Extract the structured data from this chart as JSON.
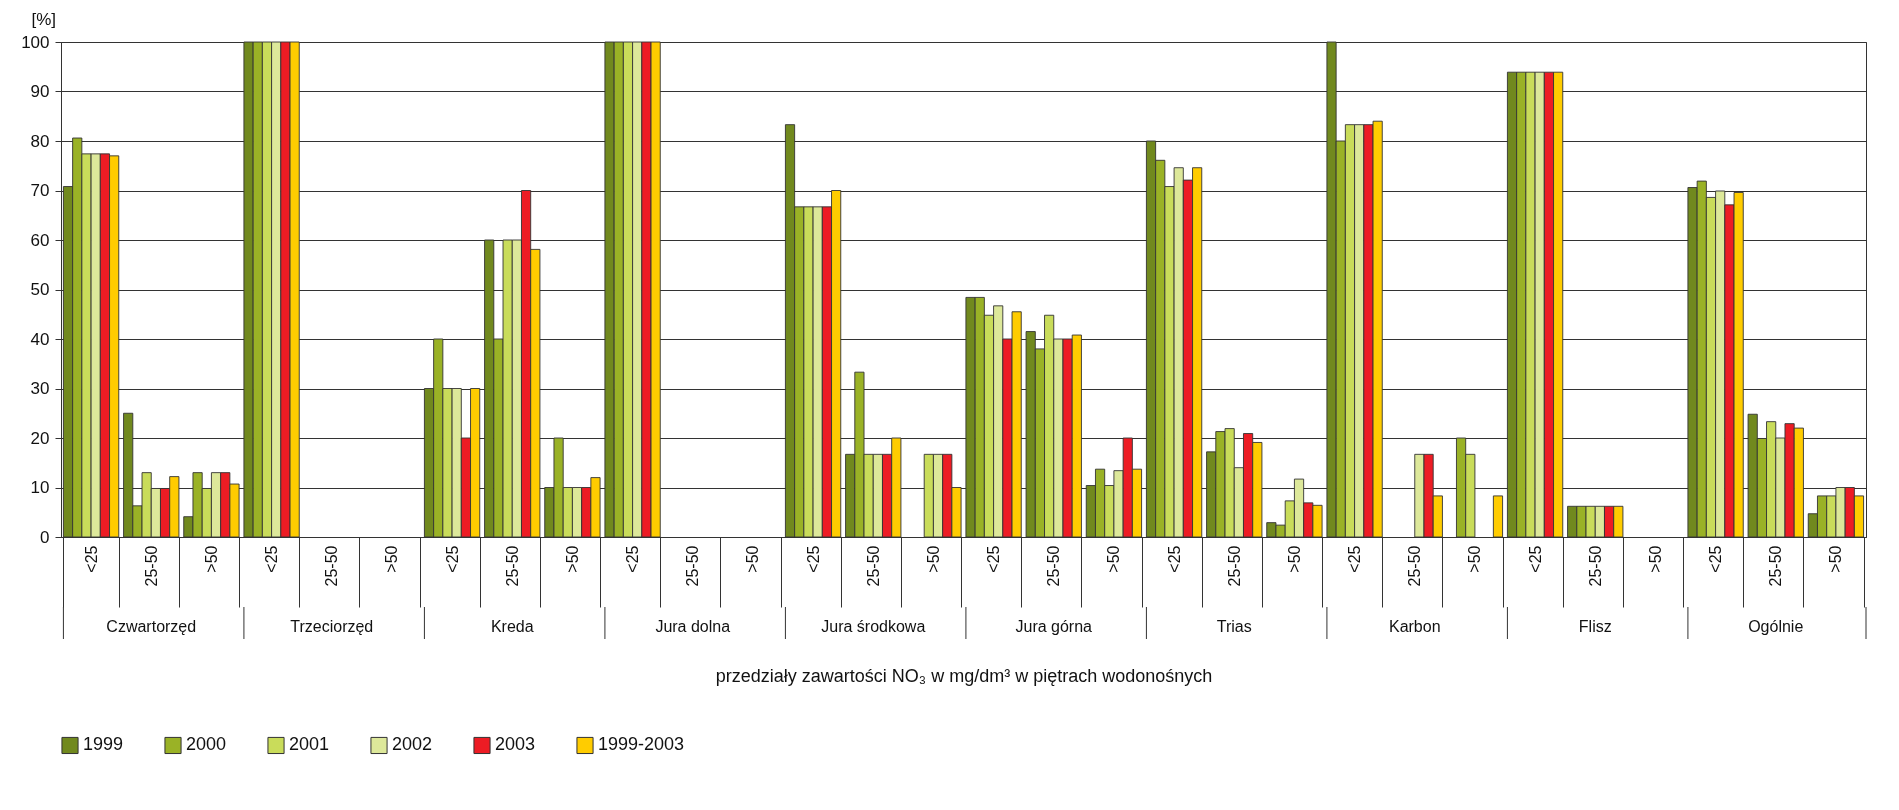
{
  "chart_data": {
    "type": "bar",
    "ylabel": "[%]",
    "xlabel": "przedziały zawartości NO₃ w mg/dm³ w piętrach wodonośnych",
    "categories": [
      "<25",
      "25-50",
      ">50",
      "<25",
      "25-50",
      ">50",
      "<25",
      "25-50",
      ">50",
      "<25",
      "25-50",
      ">50",
      "<25",
      "25-50",
      ">50",
      "<25",
      "25-50",
      ">50",
      "<25",
      "25-50",
      ">50",
      "<25",
      "25-50",
      ">50",
      "<25",
      "25-50",
      ">50",
      "<25",
      "25-50",
      ">50"
    ],
    "annotations": [
      "Czwartorzęd",
      "Trzeciorzęd",
      "Kreda",
      "Jura dolna",
      "Jura środkowa",
      "Jura górna",
      "Trias",
      "Karbon",
      "Flisz",
      "Ogólnie"
    ],
    "series": [
      {
        "name": "1999",
        "color": "#71891e",
        "values": [
          70.8,
          25,
          4.1,
          100,
          null,
          null,
          30,
          60,
          10,
          100,
          null,
          null,
          83.3,
          16.7,
          null,
          48.4,
          41.5,
          10.4,
          80,
          17.2,
          2.9,
          100,
          null,
          null,
          93.9,
          6.2,
          null,
          70.6,
          24.8,
          4.7
        ]
      },
      {
        "name": "2000",
        "color": "#9ab226",
        "values": [
          80.6,
          6.3,
          13,
          100,
          null,
          null,
          40,
          40,
          20,
          100,
          null,
          null,
          66.7,
          33.3,
          null,
          48.4,
          38,
          13.7,
          76.1,
          21.3,
          2.4,
          80,
          null,
          20,
          93.9,
          6.2,
          null,
          71.9,
          19.9,
          8.3
        ]
      },
      {
        "name": "2001",
        "color": "#c9dc5a",
        "values": [
          77.4,
          13,
          9.8,
          100,
          null,
          null,
          30,
          60,
          10,
          100,
          null,
          null,
          66.7,
          16.7,
          16.7,
          44.8,
          44.8,
          10.4,
          70.8,
          21.9,
          7.3,
          83.3,
          null,
          16.7,
          93.9,
          6.2,
          null,
          68.6,
          23.3,
          8.3
        ]
      },
      {
        "name": "2002",
        "color": "#dde89a",
        "values": [
          77.4,
          9.8,
          13,
          100,
          null,
          null,
          30,
          60,
          10,
          100,
          null,
          null,
          66.7,
          16.7,
          16.7,
          46.7,
          40,
          13.4,
          74.6,
          14,
          11.7,
          83.3,
          16.7,
          null,
          93.9,
          6.2,
          null,
          69.9,
          20,
          10
        ]
      },
      {
        "name": "2003",
        "color": "#ed1c24",
        "values": [
          77.4,
          9.8,
          13,
          100,
          null,
          null,
          20,
          70,
          10,
          100,
          null,
          null,
          66.7,
          16.7,
          16.7,
          40,
          40,
          20,
          72.1,
          20.9,
          6.9,
          83.3,
          16.7,
          null,
          93.9,
          6.2,
          null,
          67.1,
          22.9,
          10
        ]
      },
      {
        "name": "1999-2003",
        "color": "#ffcc00",
        "values": [
          77,
          12.2,
          10.7,
          100,
          null,
          null,
          30,
          58.1,
          12,
          100,
          null,
          null,
          70,
          20,
          10,
          45.5,
          40.8,
          13.7,
          74.6,
          19.1,
          6.4,
          84,
          8.3,
          8.3,
          93.9,
          6.2,
          null,
          69.6,
          22,
          8.3
        ]
      }
    ],
    "ylim": [
      0,
      100
    ],
    "yticks": [
      0,
      10,
      20,
      30,
      40,
      50,
      60,
      70,
      80,
      90,
      100
    ],
    "grid": "y",
    "legend": "bottom"
  }
}
